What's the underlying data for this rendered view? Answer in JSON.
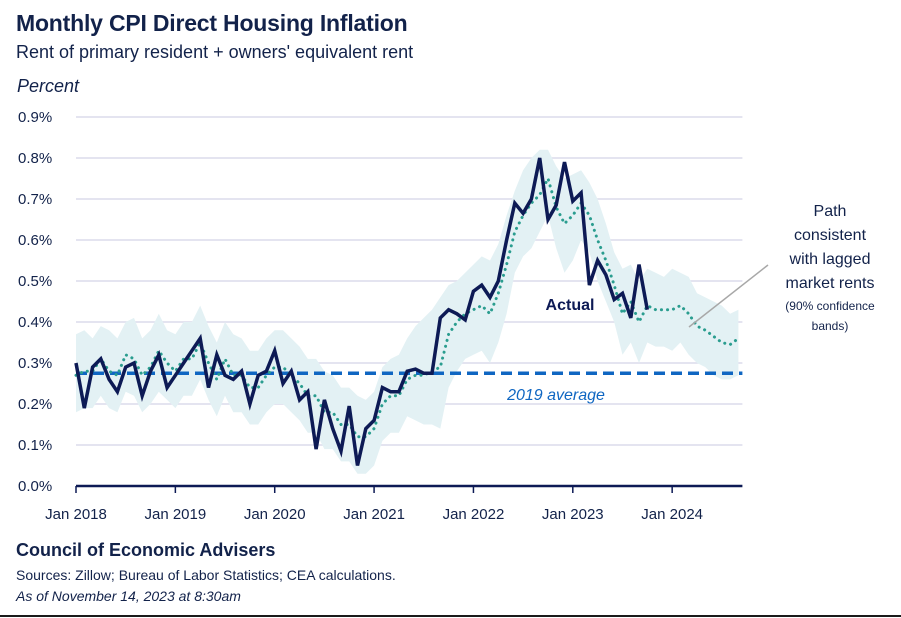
{
  "header": {
    "title": "Monthly CPI Direct Housing Inflation",
    "subtitle": "Rent of primary resident + owners' equivalent rent",
    "y_unit": "Percent"
  },
  "footer": {
    "organization": "Council of Economic Advisers",
    "sources": "Sources: Zillow; Bureau of Labor Statistics; CEA calculations.",
    "as_of": "As of November 14, 2023 at 8:30am"
  },
  "colors": {
    "actual": "#0d1a55",
    "predicted": "#2a9d8f",
    "band": "#e3f1f4",
    "average": "#0f66c2",
    "grid": "#dcdcec",
    "axis": "#0d1a55",
    "connector": "#a8a8a8"
  },
  "chart_data": {
    "type": "line",
    "title": "Monthly CPI Direct Housing Inflation",
    "subtitle": "Rent of primary resident + owners' equivalent rent",
    "xlabel": "",
    "ylabel": "Percent",
    "ylim": [
      0,
      0.9
    ],
    "yticks": [
      0,
      0.1,
      0.2,
      0.3,
      0.4,
      0.5,
      0.6,
      0.7,
      0.8,
      0.9
    ],
    "ytick_labels": [
      "0.0%",
      "0.1%",
      "0.2%",
      "0.3%",
      "0.4%",
      "0.5%",
      "0.6%",
      "0.7%",
      "0.8%",
      "0.9%"
    ],
    "x_start": "Jan 2018",
    "x_end_month_index": 80,
    "xtick_month_index": [
      0,
      12,
      24,
      36,
      48,
      60,
      72
    ],
    "xtick_labels": [
      "Jan 2018",
      "Jan 2019",
      "Jan 2020",
      "Jan 2021",
      "Jan 2022",
      "Jan 2023",
      "Jan 2024"
    ],
    "grid": true,
    "series": [
      {
        "name": "Actual",
        "style": "solid",
        "start": "Jan 2018",
        "values": [
          0.3,
          0.19,
          0.29,
          0.31,
          0.26,
          0.23,
          0.29,
          0.3,
          0.22,
          0.28,
          0.32,
          0.24,
          0.27,
          0.3,
          0.33,
          0.36,
          0.24,
          0.32,
          0.27,
          0.26,
          0.28,
          0.2,
          0.27,
          0.28,
          0.33,
          0.25,
          0.28,
          0.21,
          0.23,
          0.09,
          0.21,
          0.14,
          0.085,
          0.195,
          0.05,
          0.14,
          0.16,
          0.24,
          0.23,
          0.23,
          0.28,
          0.285,
          0.275,
          0.275,
          0.41,
          0.43,
          0.42,
          0.405,
          0.475,
          0.49,
          0.46,
          0.5,
          0.6,
          0.69,
          0.665,
          0.7,
          0.8,
          0.65,
          0.685,
          0.79,
          0.695,
          0.715,
          0.49,
          0.55,
          0.515,
          0.455,
          0.47,
          0.41,
          0.54,
          0.43
        ]
      },
      {
        "name": "Path consistent with lagged market rents",
        "style": "dotted",
        "start": "Jan 2018",
        "values": [
          0.27,
          0.28,
          0.28,
          0.31,
          0.28,
          0.27,
          0.32,
          0.31,
          0.27,
          0.29,
          0.33,
          0.3,
          0.28,
          0.31,
          0.31,
          0.35,
          0.3,
          0.26,
          0.31,
          0.27,
          0.27,
          0.24,
          0.24,
          0.27,
          0.29,
          0.29,
          0.27,
          0.25,
          0.22,
          0.22,
          0.18,
          0.18,
          0.15,
          0.15,
          0.12,
          0.12,
          0.14,
          0.2,
          0.22,
          0.22,
          0.26,
          0.27,
          0.27,
          0.28,
          0.29,
          0.37,
          0.4,
          0.42,
          0.43,
          0.44,
          0.42,
          0.47,
          0.54,
          0.62,
          0.66,
          0.69,
          0.71,
          0.75,
          0.68,
          0.64,
          0.66,
          0.69,
          0.66,
          0.6,
          0.55,
          0.49,
          0.42,
          0.45,
          0.4,
          0.44,
          0.43,
          0.43,
          0.43,
          0.44,
          0.42,
          0.39,
          0.38,
          0.365,
          0.35,
          0.345,
          0.36
        ],
        "band_upper": [
          0.37,
          0.38,
          0.36,
          0.39,
          0.38,
          0.36,
          0.4,
          0.41,
          0.36,
          0.38,
          0.42,
          0.38,
          0.37,
          0.4,
          0.4,
          0.44,
          0.39,
          0.35,
          0.4,
          0.37,
          0.36,
          0.33,
          0.33,
          0.36,
          0.38,
          0.38,
          0.36,
          0.34,
          0.31,
          0.31,
          0.28,
          0.27,
          0.24,
          0.24,
          0.22,
          0.21,
          0.23,
          0.29,
          0.31,
          0.32,
          0.36,
          0.39,
          0.41,
          0.43,
          0.46,
          0.49,
          0.5,
          0.52,
          0.54,
          0.56,
          0.55,
          0.59,
          0.66,
          0.72,
          0.77,
          0.8,
          0.82,
          0.82,
          0.78,
          0.75,
          0.76,
          0.77,
          0.74,
          0.7,
          0.64,
          0.57,
          0.53,
          0.54,
          0.5,
          0.53,
          0.52,
          0.51,
          0.53,
          0.52,
          0.51,
          0.47,
          0.46,
          0.45,
          0.44,
          0.42,
          0.43
        ],
        "band_lower": [
          0.18,
          0.19,
          0.19,
          0.22,
          0.19,
          0.18,
          0.23,
          0.22,
          0.18,
          0.2,
          0.23,
          0.21,
          0.19,
          0.22,
          0.22,
          0.26,
          0.21,
          0.17,
          0.22,
          0.18,
          0.18,
          0.15,
          0.15,
          0.18,
          0.2,
          0.2,
          0.18,
          0.16,
          0.13,
          0.13,
          0.09,
          0.09,
          0.06,
          0.06,
          0.03,
          0.03,
          0.05,
          0.11,
          0.13,
          0.13,
          0.17,
          0.16,
          0.15,
          0.15,
          0.14,
          0.24,
          0.28,
          0.31,
          0.32,
          0.33,
          0.3,
          0.35,
          0.42,
          0.52,
          0.56,
          0.58,
          0.62,
          0.66,
          0.58,
          0.52,
          0.55,
          0.6,
          0.57,
          0.5,
          0.45,
          0.4,
          0.32,
          0.35,
          0.3,
          0.35,
          0.34,
          0.34,
          0.33,
          0.35,
          0.32,
          0.3,
          0.29,
          0.27,
          0.26,
          0.26,
          0.27
        ]
      },
      {
        "name": "2019 average",
        "style": "dashed",
        "value": 0.275
      }
    ],
    "annotations": [
      {
        "text": "Actual",
        "near": "late 2022 below peak"
      },
      {
        "text": "2019 average",
        "near": "below average line"
      },
      {
        "text": "Path consistent with lagged market rents",
        "note": "(90% confidence bands)",
        "near": "right"
      }
    ]
  },
  "labels": {
    "actual": "Actual",
    "average": "2019 average",
    "annot_line1": "Path",
    "annot_line2": "consistent",
    "annot_line3": "with lagged",
    "annot_line4": "market rents",
    "annot_line5": "(90% confidence",
    "annot_line6": "bands)"
  }
}
